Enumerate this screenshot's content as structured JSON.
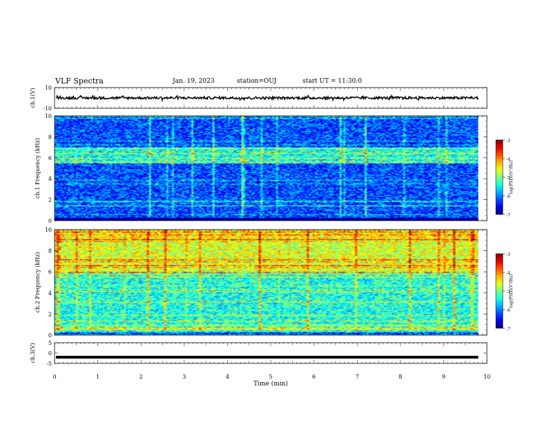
{
  "header": {
    "title": "VLF Spectra",
    "date": "Jan. 19, 2023",
    "station": "station=OUJ",
    "start": "start UT = 11:30:0"
  },
  "colors": {
    "background": "#ffffff",
    "axis": "#000000",
    "trace": "#000000"
  },
  "chart_data": [
    {
      "type": "line",
      "panel": "ch1-waveform",
      "ylabel": "ch.1(V)",
      "ylim": [
        -10,
        10
      ],
      "yticks": [
        "10",
        "-10"
      ],
      "xlim": [
        0,
        10
      ],
      "series": [
        {
          "values_description": "noisy waveform centred near 0 V, amplitude about ±2 V"
        }
      ]
    },
    {
      "type": "heatmap",
      "panel": "ch1-spectrogram",
      "ylabel": "ch.1 Frequency (kHz)",
      "ylim": [
        0,
        10
      ],
      "yticks": [
        "0",
        "2",
        "4",
        "6",
        "8",
        "10"
      ],
      "xlim": [
        0,
        9.8
      ],
      "colorbar": {
        "label": "log(PSD)(V²/Hz)",
        "range": [
          -7,
          -3
        ],
        "ticks": [
          "-3",
          "-4",
          "-5",
          "-6",
          "-7"
        ],
        "colormap": "jet"
      },
      "features": {
        "bright_band_khz": [
          5.5,
          7.0
        ],
        "mean_level": -6.2
      }
    },
    {
      "type": "heatmap",
      "panel": "ch2-spectrogram",
      "ylabel": "ch.2 Frequency (kHz)",
      "ylim": [
        0,
        10
      ],
      "yticks": [
        "0",
        "2",
        "4",
        "6",
        "8",
        "10"
      ],
      "xlim": [
        0,
        9.8
      ],
      "colorbar": {
        "label": "log(PSD)(V²/Hz)",
        "range": [
          -7,
          -3
        ],
        "ticks": [
          "-3",
          "-4",
          "-5",
          "-6",
          "-7"
        ],
        "colormap": "jet"
      },
      "features": {
        "bright_band_khz": [
          6.0,
          10.0
        ],
        "mean_level": -5.4
      }
    },
    {
      "type": "line",
      "panel": "ch3-waveform",
      "ylabel": "ch.3(V)",
      "ylim": [
        -5,
        5
      ],
      "yticks": [
        "5",
        "0",
        "-5"
      ],
      "xlim": [
        0,
        10
      ],
      "series": [
        {
          "values_description": "flat thick line at about -2 V"
        }
      ],
      "level": -2
    }
  ],
  "xaxis": {
    "label": "Time (min)",
    "ticks": [
      "0",
      "1",
      "2",
      "3",
      "4",
      "5",
      "6",
      "7",
      "8",
      "9",
      "10"
    ]
  }
}
